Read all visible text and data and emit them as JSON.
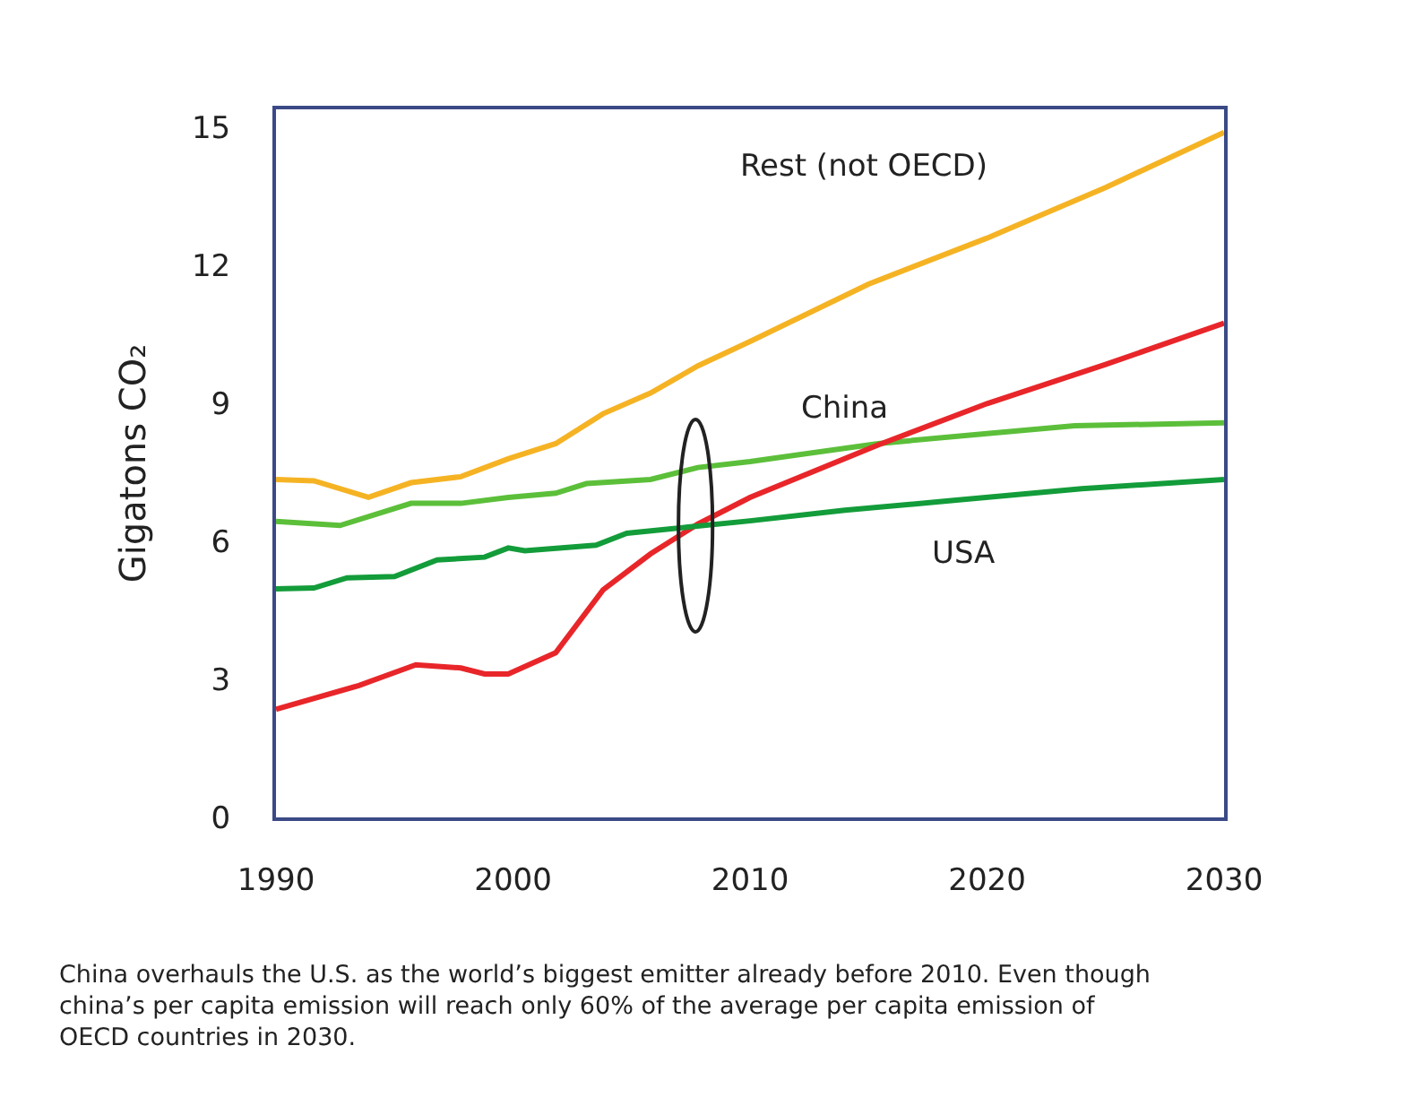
{
  "chart_data": {
    "type": "line",
    "ylabel": "Gigatons CO₂",
    "xlim": [
      1990,
      2030
    ],
    "ylim": [
      0,
      15.4
    ],
    "xticks": [
      1990,
      2000,
      2010,
      2020,
      2030
    ],
    "yticks": [
      0,
      3,
      6,
      9,
      12,
      15
    ],
    "legend": false,
    "marker": "none",
    "line_style": "solid",
    "series": [
      {
        "name": "Rest (not OECD)",
        "color": "#f5b324",
        "x": [
          1990,
          1991.6,
          1993.9,
          1995.7,
          1997.8,
          1999.8,
          2001.8,
          2003.8,
          2005.8,
          2007.8,
          2010,
          2015,
          2020,
          2025,
          2030
        ],
        "values": [
          7.35,
          7.32,
          6.96,
          7.28,
          7.41,
          7.8,
          8.13,
          8.78,
          9.23,
          9.82,
          10.35,
          11.6,
          12.6,
          13.7,
          14.9
        ]
      },
      {
        "color": "#5cbf3a",
        "x": [
          1990,
          1992.7,
          1995.7,
          1997.8,
          1999.8,
          2001.8,
          2003.1,
          2005.8,
          2007.8,
          2010,
          2015.4,
          2020,
          2023.7,
          2030
        ],
        "values": [
          6.44,
          6.35,
          6.83,
          6.83,
          6.96,
          7.05,
          7.26,
          7.35,
          7.61,
          7.74,
          8.13,
          8.35,
          8.52,
          8.58
        ]
      },
      {
        "name": "China",
        "color": "#e8262a",
        "x": [
          1990,
          1993.5,
          1995.9,
          1997.8,
          1998.8,
          1999.8,
          2001.8,
          2003.8,
          2005.8,
          2007.8,
          2010,
          2015.4,
          2020,
          2025,
          2030
        ],
        "values": [
          2.35,
          2.87,
          3.32,
          3.25,
          3.12,
          3.12,
          3.58,
          4.95,
          5.73,
          6.38,
          6.96,
          8.1,
          9.0,
          9.85,
          10.75
        ]
      },
      {
        "name": "USA",
        "color": "#139c3a",
        "x": [
          1990,
          1991.6,
          1993,
          1995,
          1996.8,
          1998.8,
          1999.8,
          2000.5,
          2003.5,
          2004.8,
          2007.3,
          2010,
          2014,
          2018.7,
          2024,
          2030
        ],
        "values": [
          4.97,
          4.99,
          5.21,
          5.24,
          5.6,
          5.66,
          5.86,
          5.8,
          5.92,
          6.18,
          6.31,
          6.45,
          6.68,
          6.9,
          7.15,
          7.35
        ]
      }
    ],
    "annotations": [
      "China overhauls the U.S. as the world’s biggest emitter already before 2010. Even though china’s per capita emission will reach only 60% of the average per capita emission of OECD countries in 2030."
    ]
  }
}
